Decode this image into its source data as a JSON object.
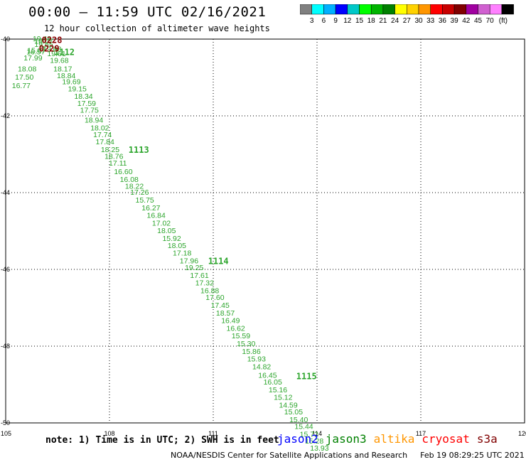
{
  "header": {
    "title": "00:00 – 11:59 UTC 02/16/2021",
    "subtitle": "12 hour collection of altimeter wave heights"
  },
  "colorbar": {
    "colors": [
      "#808080",
      "#00ffff",
      "#00b0ff",
      "#0000ff",
      "#00c8c8",
      "#00ff00",
      "#00b400",
      "#008000",
      "#ffff00",
      "#ffd200",
      "#ff9600",
      "#ff0000",
      "#c80000",
      "#800000",
      "#a000a0",
      "#d060d0",
      "#ff80ff",
      "#000000"
    ],
    "labels": [
      "3",
      "6",
      "9",
      "12",
      "15",
      "18",
      "21",
      "24",
      "27",
      "30",
      "33",
      "36",
      "39",
      "42",
      "45",
      "70"
    ],
    "unit": "(ft)"
  },
  "chart_data": {
    "type": "scatter",
    "title": "00:00 – 11:59 UTC 02/16/2021",
    "xlim": [
      105,
      120
    ],
    "ylim": [
      -50,
      -40
    ],
    "x_ticks": [
      "105",
      "108",
      "111",
      "114",
      "117",
      "120"
    ],
    "y_ticks": [
      "-40",
      "-42",
      "-44",
      "-46",
      "-48",
      "-50"
    ],
    "series": [
      {
        "name": "jason3",
        "color": "#2ca52c",
        "points": [
          {
            "x": 105.78,
            "y": -40.06,
            "v": "19.48"
          },
          {
            "x": 105.83,
            "y": -40.2,
            "v": "19.65"
          },
          {
            "x": 106.07,
            "y": -40.32,
            "v": "19.68"
          },
          {
            "x": 105.6,
            "y": -40.4,
            "v": "16.57"
          },
          {
            "x": 105.83,
            "y": -40.12,
            "v": "18.07"
          },
          {
            "x": 105.62,
            "y": -40.36,
            "v": "15.87"
          },
          {
            "x": 106.2,
            "y": -40.44,
            "v": "19.61"
          },
          {
            "x": 105.52,
            "y": -40.56,
            "v": "17.99"
          },
          {
            "x": 106.28,
            "y": -40.62,
            "v": "19.68"
          },
          {
            "x": 105.35,
            "y": -40.84,
            "v": "18.08"
          },
          {
            "x": 106.38,
            "y": -40.84,
            "v": "18.17"
          },
          {
            "x": 105.27,
            "y": -41.06,
            "v": "17.50"
          },
          {
            "x": 106.48,
            "y": -41.02,
            "v": "18.84"
          },
          {
            "x": 105.18,
            "y": -41.28,
            "v": "16.77"
          },
          {
            "x": 106.63,
            "y": -41.18,
            "v": "19.69"
          },
          {
            "x": 106.8,
            "y": -41.36,
            "v": "19.15"
          },
          {
            "x": 106.98,
            "y": -41.56,
            "v": "18.34"
          },
          {
            "x": 107.07,
            "y": -41.74,
            "v": "17.59"
          },
          {
            "x": 107.15,
            "y": -41.92,
            "v": "17.75"
          },
          {
            "x": 107.28,
            "y": -42.18,
            "v": "18.94"
          },
          {
            "x": 107.45,
            "y": -42.38,
            "v": "18.02"
          },
          {
            "x": 107.53,
            "y": -42.56,
            "v": "17.74"
          },
          {
            "x": 107.6,
            "y": -42.74,
            "v": "17.84"
          },
          {
            "x": 107.75,
            "y": -42.94,
            "v": "18.25"
          },
          {
            "x": 107.86,
            "y": -43.12,
            "v": "18.76"
          },
          {
            "x": 107.98,
            "y": -43.3,
            "v": "17.11"
          },
          {
            "x": 108.13,
            "y": -43.52,
            "v": "16.60"
          },
          {
            "x": 108.3,
            "y": -43.72,
            "v": "16.08"
          },
          {
            "x": 108.45,
            "y": -43.9,
            "v": "18.22"
          },
          {
            "x": 108.6,
            "y": -44.06,
            "v": "17.26"
          },
          {
            "x": 108.75,
            "y": -44.26,
            "v": "15.75"
          },
          {
            "x": 108.93,
            "y": -44.46,
            "v": "16.27"
          },
          {
            "x": 109.08,
            "y": -44.66,
            "v": "16.84"
          },
          {
            "x": 109.23,
            "y": -44.86,
            "v": "17.02"
          },
          {
            "x": 109.38,
            "y": -45.06,
            "v": "18.05"
          },
          {
            "x": 109.53,
            "y": -45.26,
            "v": "15.92"
          },
          {
            "x": 109.68,
            "y": -45.44,
            "v": "18.05"
          },
          {
            "x": 109.83,
            "y": -45.64,
            "v": "17.18"
          },
          {
            "x": 110.03,
            "y": -45.84,
            "v": "17.96"
          },
          {
            "x": 110.18,
            "y": -46.02,
            "v": "19.25"
          },
          {
            "x": 110.33,
            "y": -46.22,
            "v": "17.61"
          },
          {
            "x": 110.48,
            "y": -46.42,
            "v": "17.32"
          },
          {
            "x": 110.63,
            "y": -46.62,
            "v": "16.88"
          },
          {
            "x": 110.78,
            "y": -46.8,
            "v": "17.60"
          },
          {
            "x": 110.93,
            "y": -47.0,
            "v": "17.45"
          },
          {
            "x": 111.08,
            "y": -47.2,
            "v": "18.57"
          },
          {
            "x": 111.23,
            "y": -47.4,
            "v": "16.49"
          },
          {
            "x": 111.38,
            "y": -47.6,
            "v": "16.62"
          },
          {
            "x": 111.53,
            "y": -47.8,
            "v": "15.59"
          },
          {
            "x": 111.68,
            "y": -48.0,
            "v": "15.30"
          },
          {
            "x": 111.83,
            "y": -48.2,
            "v": "15.86"
          },
          {
            "x": 111.98,
            "y": -48.4,
            "v": "15.93"
          },
          {
            "x": 112.13,
            "y": -48.6,
            "v": "14.82"
          },
          {
            "x": 112.3,
            "y": -48.82,
            "v": "16.45"
          },
          {
            "x": 112.45,
            "y": -49.0,
            "v": "16.05"
          },
          {
            "x": 112.6,
            "y": -49.2,
            "v": "15.16"
          },
          {
            "x": 112.75,
            "y": -49.4,
            "v": "15.12"
          },
          {
            "x": 112.9,
            "y": -49.6,
            "v": "14.59"
          },
          {
            "x": 113.05,
            "y": -49.78,
            "v": "15.05"
          },
          {
            "x": 113.2,
            "y": -49.98,
            "v": "15.40"
          },
          {
            "x": 113.35,
            "y": -50.16,
            "v": "15.44"
          },
          {
            "x": 113.5,
            "y": -50.36,
            "v": "15.72"
          },
          {
            "x": 113.65,
            "y": -50.54,
            "v": "15.28"
          },
          {
            "x": 113.8,
            "y": -50.72,
            "v": "13.93"
          }
        ],
        "time_labels": [
          {
            "x": 106.4,
            "y": -40.42,
            "v": "1112"
          },
          {
            "x": 108.55,
            "y": -42.96,
            "v": "1113"
          },
          {
            "x": 110.85,
            "y": -45.86,
            "v": "1114"
          },
          {
            "x": 113.4,
            "y": -48.86,
            "v": "1115"
          }
        ]
      },
      {
        "name": "cryosat",
        "color": "#8b0000",
        "points": [],
        "time_labels": [
          {
            "x": 106.04,
            "y": -40.1,
            "v": "0228"
          },
          {
            "x": 105.96,
            "y": -40.32,
            "v": "0229"
          }
        ]
      }
    ]
  },
  "note": "note: 1) Time is in UTC; 2) SWH is in feet",
  "satellites": [
    {
      "name": "jason2",
      "color": "#0000ff"
    },
    {
      "name": "jason3",
      "color": "#008000"
    },
    {
      "name": "altika",
      "color": "#ff9600"
    },
    {
      "name": "cryosat",
      "color": "#ff0000"
    },
    {
      "name": "s3a",
      "color": "#800000"
    }
  ],
  "footer": {
    "credit": "NOAA/NESDIS Center for Satellite Applications and Research",
    "timestamp": "Feb 19 08:29:25 UTC 2021"
  }
}
